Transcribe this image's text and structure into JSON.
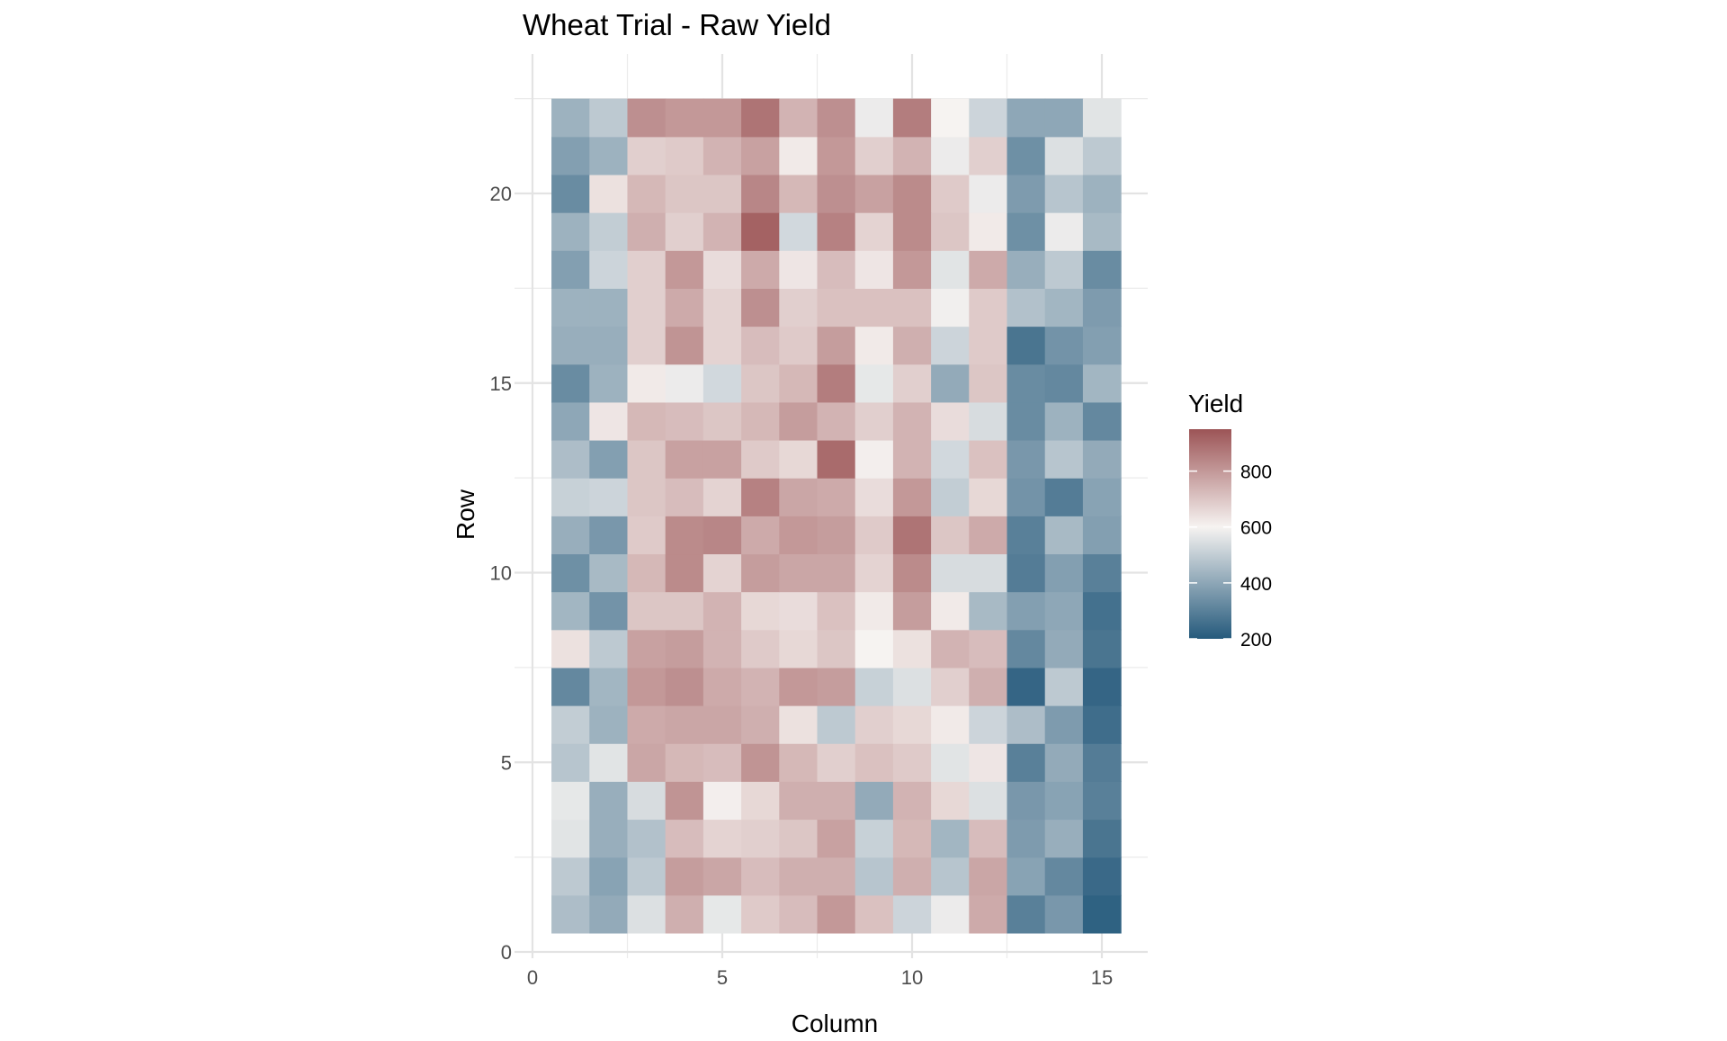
{
  "chart_data": {
    "type": "heatmap",
    "title": "Wheat Trial - Raw Yield",
    "xlabel": "Column",
    "ylabel": "Row",
    "xlim": [
      0,
      15.5
    ],
    "ylim": [
      0,
      22.5
    ],
    "x_ticks": [
      0,
      5,
      10,
      15
    ],
    "y_ticks": [
      0,
      5,
      10,
      15,
      20
    ],
    "grid": true,
    "legend": {
      "title": "Yield",
      "position": "right",
      "ticks": [
        200,
        400,
        600,
        800
      ],
      "range": [
        200,
        950
      ],
      "low_color": "#255A7C",
      "mid_color": "#F6F3F1",
      "high_color": "#9C5456",
      "midpoint": 600
    },
    "columns": [
      1,
      2,
      3,
      4,
      5,
      6,
      7,
      8,
      9,
      10,
      11,
      12,
      13,
      14,
      15
    ],
    "rows": [
      1,
      2,
      3,
      4,
      5,
      6,
      7,
      8,
      9,
      10,
      11,
      12,
      13,
      14,
      15,
      16,
      17,
      18,
      19,
      20,
      21,
      22
    ],
    "values": [
      [
        460,
        410,
        550,
        750,
        570,
        690,
        720,
        800,
        710,
        520,
        580,
        760,
        300,
        360,
        220
      ],
      [
        490,
        390,
        490,
        790,
        770,
        720,
        750,
        750,
        480,
        750,
        480,
        770,
        390,
        320,
        240
      ],
      [
        560,
        420,
        470,
        720,
        670,
        680,
        700,
        780,
        510,
        730,
        440,
        720,
        370,
        420,
        270
      ],
      [
        570,
        420,
        540,
        810,
        610,
        660,
        750,
        750,
        410,
        740,
        660,
        550,
        360,
        390,
        300
      ],
      [
        480,
        560,
        770,
        730,
        720,
        810,
        730,
        680,
        710,
        690,
        560,
        630,
        300,
        410,
        290
      ],
      [
        500,
        430,
        760,
        770,
        770,
        750,
        640,
        490,
        680,
        660,
        620,
        520,
        460,
        370,
        250
      ],
      [
        320,
        440,
        800,
        820,
        760,
        740,
        800,
        790,
        510,
        550,
        680,
        750,
        230,
        490,
        230
      ],
      [
        640,
        490,
        780,
        790,
        740,
        690,
        660,
        700,
        600,
        640,
        740,
        720,
        320,
        410,
        270
      ],
      [
        440,
        350,
        700,
        700,
        740,
        660,
        650,
        710,
        620,
        790,
        620,
        450,
        380,
        400,
        260
      ],
      [
        340,
        450,
        730,
        830,
        670,
        790,
        770,
        770,
        670,
        830,
        540,
        540,
        290,
        380,
        300
      ],
      [
        420,
        360,
        690,
        830,
        840,
        760,
        800,
        790,
        690,
        880,
        700,
        760,
        300,
        450,
        380
      ],
      [
        510,
        520,
        700,
        720,
        670,
        850,
        770,
        760,
        650,
        800,
        500,
        660,
        350,
        290,
        390
      ],
      [
        460,
        380,
        700,
        780,
        780,
        690,
        660,
        900,
        610,
        740,
        530,
        710,
        360,
        480,
        410
      ],
      [
        400,
        630,
        730,
        720,
        700,
        730,
        790,
        740,
        680,
        740,
        650,
        540,
        330,
        430,
        320
      ],
      [
        330,
        430,
        620,
        580,
        530,
        700,
        730,
        860,
        570,
        680,
        410,
        700,
        330,
        320,
        440
      ],
      [
        420,
        420,
        680,
        810,
        670,
        720,
        690,
        790,
        620,
        750,
        520,
        690,
        270,
        350,
        380
      ],
      [
        430,
        430,
        680,
        760,
        670,
        820,
        680,
        710,
        710,
        710,
        590,
        690,
        470,
        440,
        370
      ],
      [
        380,
        520,
        680,
        800,
        650,
        760,
        630,
        720,
        630,
        800,
        560,
        760,
        420,
        490,
        330
      ],
      [
        430,
        500,
        750,
        680,
        740,
        920,
        530,
        850,
        670,
        830,
        700,
        620,
        340,
        580,
        450
      ],
      [
        330,
        640,
        730,
        700,
        700,
        840,
        730,
        820,
        780,
        830,
        690,
        580,
        370,
        480,
        430
      ],
      [
        380,
        430,
        680,
        690,
        740,
        780,
        620,
        800,
        680,
        740,
        580,
        680,
        340,
        550,
        490
      ],
      [
        430,
        490,
        820,
        800,
        800,
        880,
        740,
        820,
        580,
        860,
        600,
        520,
        400,
        400,
        560
      ]
    ]
  }
}
